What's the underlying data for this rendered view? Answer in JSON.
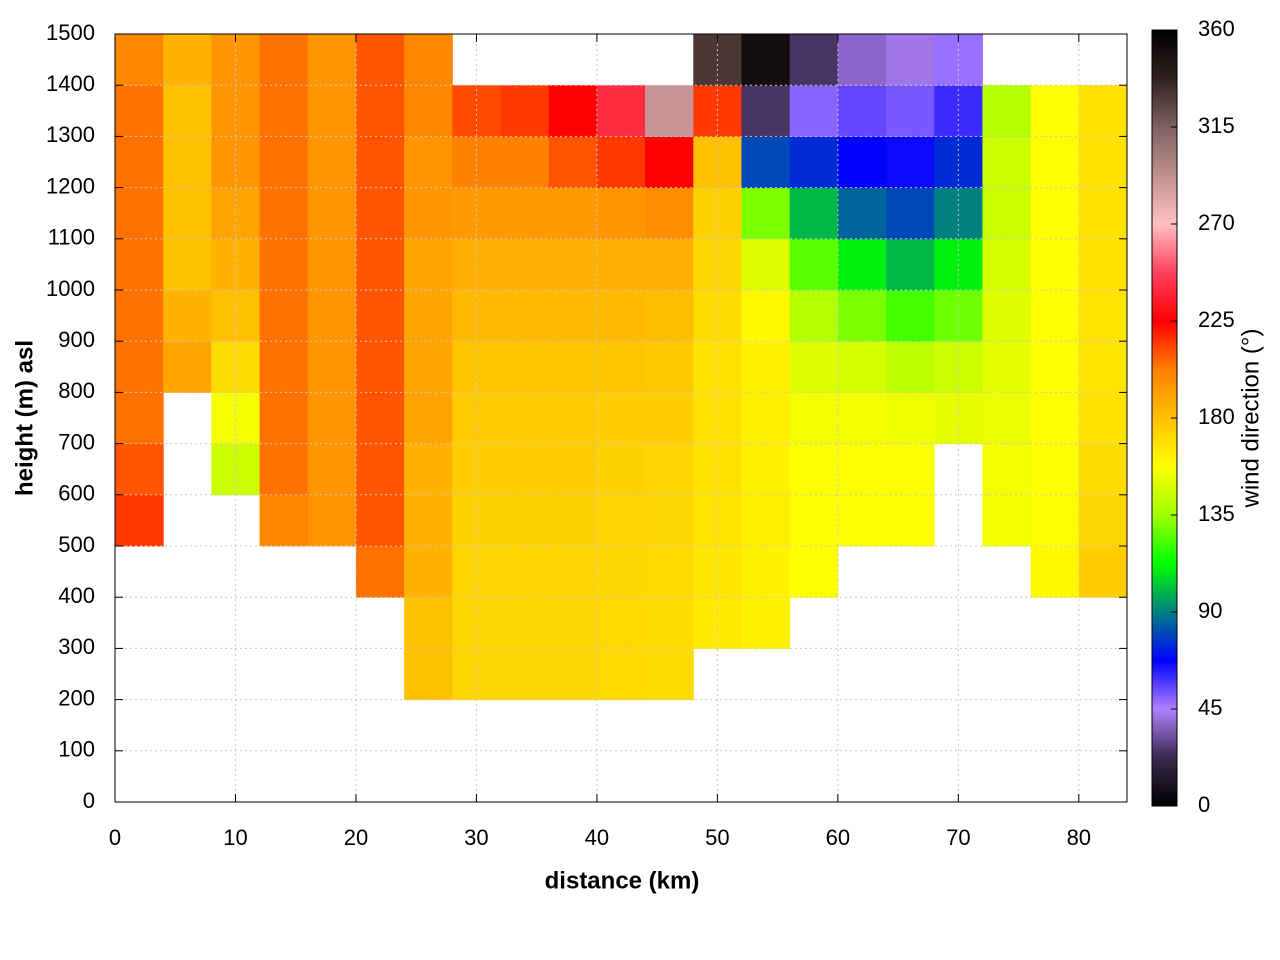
{
  "chart_data": {
    "type": "heatmap",
    "xlabel": "distance (km)",
    "ylabel": "height (m) asl",
    "colorbar_label": "wind direction (°)",
    "x": [
      2,
      6,
      10,
      14,
      18,
      22,
      26,
      30,
      34,
      38,
      42,
      46,
      50,
      54,
      58,
      62,
      66,
      70,
      74,
      78,
      82
    ],
    "y": [
      50,
      150,
      250,
      350,
      450,
      550,
      650,
      750,
      850,
      950,
      1050,
      1150,
      1250,
      1350,
      1450
    ],
    "values": [
      [
        null,
        null,
        null,
        null,
        null,
        215,
        210,
        205,
        205,
        205,
        205,
        205,
        205,
        205,
        200
      ],
      [
        null,
        null,
        null,
        null,
        null,
        null,
        null,
        null,
        190,
        185,
        180,
        180,
        180,
        180,
        185
      ],
      [
        null,
        null,
        null,
        null,
        null,
        null,
        145,
        155,
        170,
        180,
        185,
        190,
        195,
        195,
        195
      ],
      [
        null,
        null,
        null,
        null,
        null,
        200,
        205,
        205,
        205,
        205,
        205,
        205,
        205,
        205,
        205
      ],
      [
        null,
        null,
        null,
        null,
        null,
        195,
        195,
        195,
        195,
        195,
        195,
        195,
        195,
        195,
        195
      ],
      [
        null,
        null,
        null,
        null,
        205,
        210,
        210,
        210,
        210,
        210,
        210,
        210,
        210,
        210,
        210
      ],
      [
        null,
        null,
        180,
        180,
        185,
        185,
        185,
        190,
        190,
        190,
        190,
        195,
        195,
        200,
        200
      ],
      [
        null,
        null,
        172,
        172,
        173,
        174,
        175,
        176,
        178,
        182,
        186,
        193,
        202,
        212,
        null
      ],
      [
        null,
        null,
        172,
        172,
        173,
        174,
        175,
        176,
        178,
        182,
        186,
        193,
        202,
        215,
        null
      ],
      [
        null,
        null,
        172,
        172,
        173,
        174,
        175,
        176,
        178,
        182,
        186,
        193,
        210,
        225,
        null
      ],
      [
        null,
        null,
        171,
        171,
        172,
        173,
        174,
        175,
        178,
        182,
        186,
        195,
        215,
        240,
        null
      ],
      [
        null,
        null,
        170,
        170,
        171,
        172,
        173,
        175,
        177,
        181,
        186,
        198,
        225,
        290,
        null
      ],
      [
        null,
        null,
        null,
        165,
        166,
        167,
        168,
        168,
        168,
        170,
        172,
        174,
        180,
        215,
        330
      ],
      [
        null,
        null,
        null,
        162,
        162,
        163,
        163,
        163,
        162,
        160,
        150,
        130,
        80,
        25,
        350
      ],
      [
        null,
        null,
        null,
        null,
        158,
        158,
        157,
        155,
        150,
        140,
        125,
        100,
        75,
        50,
        25
      ],
      [
        null,
        null,
        null,
        null,
        null,
        158,
        157,
        155,
        148,
        130,
        110,
        85,
        68,
        55,
        38
      ],
      [
        null,
        null,
        null,
        null,
        null,
        158,
        157,
        154,
        142,
        122,
        100,
        80,
        66,
        52,
        42
      ],
      [
        null,
        null,
        null,
        null,
        null,
        null,
        null,
        152,
        145,
        128,
        110,
        90,
        75,
        60,
        48
      ],
      [
        null,
        null,
        null,
        null,
        null,
        155,
        155,
        153,
        152,
        150,
        148,
        145,
        145,
        140,
        null
      ],
      [
        null,
        null,
        null,
        null,
        160,
        158,
        158,
        158,
        158,
        158,
        158,
        158,
        158,
        158,
        null
      ],
      [
        null,
        null,
        null,
        null,
        175,
        172,
        170,
        168,
        167,
        167,
        168,
        168,
        168,
        168,
        null
      ]
    ],
    "xlim": [
      0,
      84
    ],
    "ylim": [
      0,
      1500
    ],
    "xticks": [
      0,
      10,
      20,
      30,
      40,
      50,
      60,
      70,
      80
    ],
    "yticks": [
      0,
      100,
      200,
      300,
      400,
      500,
      600,
      700,
      800,
      900,
      1000,
      1100,
      1200,
      1300,
      1400,
      1500
    ],
    "zlim": [
      0,
      360
    ],
    "zticks": [
      0,
      45,
      90,
      135,
      180,
      225,
      270,
      315,
      360
    ],
    "colorscale": [
      "#000000",
      "#3a2a50",
      "#b080ff",
      "#0000ff",
      "#008080",
      "#00ff00",
      "#a0ff00",
      "#ffff00",
      "#ffc000",
      "#ff8000",
      "#ff0000",
      "#ff4060",
      "#ffc0c0",
      "#c09090",
      "#806060",
      "#302020",
      "#000000"
    ],
    "grid": true
  }
}
